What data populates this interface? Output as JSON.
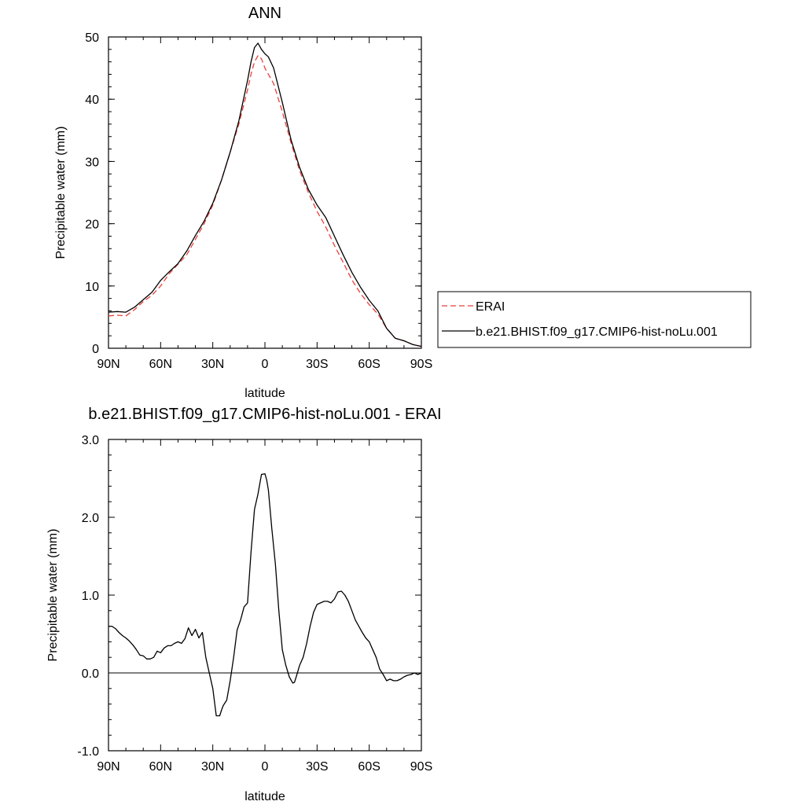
{
  "chart_data": [
    {
      "type": "line",
      "title": "ANN",
      "xlabel": "latitude",
      "ylabel": "Precipitable water (mm)",
      "x_ticks": [
        "90N",
        "60N",
        "30N",
        "0",
        "30S",
        "60S",
        "90S"
      ],
      "y_ticks": [
        "0",
        "10",
        "20",
        "30",
        "40",
        "50"
      ],
      "xlim": [
        90,
        -90
      ],
      "ylim": [
        0,
        50
      ],
      "legend_position": "right",
      "series": [
        {
          "name": "ERAI",
          "color": "#e8403a",
          "dash": "dashed",
          "x": [
            90,
            85,
            80,
            75,
            70,
            65,
            60,
            55,
            50,
            45,
            40,
            35,
            30,
            25,
            20,
            15,
            10,
            8,
            6,
            4,
            2,
            0,
            -2,
            -5,
            -10,
            -15,
            -20,
            -25,
            -30,
            -35,
            -40,
            -45,
            -50,
            -55,
            -60,
            -65,
            -70,
            -75,
            -80,
            -85,
            -90
          ],
          "y": [
            5.2,
            5.3,
            5.2,
            6.2,
            7.5,
            8.5,
            10.0,
            12.0,
            13.5,
            15.0,
            17.5,
            20.0,
            23.0,
            27.0,
            31.5,
            36.0,
            41.5,
            44.0,
            46.0,
            47.0,
            46.5,
            45.0,
            44.0,
            42.5,
            38.0,
            33.0,
            28.5,
            25.0,
            22.0,
            19.5,
            16.5,
            13.8,
            11.0,
            8.8,
            7.0,
            5.5,
            3.2,
            1.6,
            1.2,
            0.6,
            0.3
          ]
        },
        {
          "name": "b.e21.BHIST.f09_g17.CMIP6-hist-noLu.001",
          "color": "#000000",
          "dash": "solid",
          "x": [
            90,
            85,
            80,
            75,
            70,
            65,
            60,
            55,
            50,
            45,
            40,
            35,
            30,
            25,
            20,
            15,
            10,
            8,
            6,
            4,
            2,
            0,
            -2,
            -5,
            -10,
            -15,
            -20,
            -25,
            -30,
            -35,
            -40,
            -45,
            -50,
            -55,
            -60,
            -65,
            -70,
            -75,
            -80,
            -85,
            -90
          ],
          "y": [
            5.8,
            5.9,
            5.8,
            6.6,
            7.8,
            9.0,
            10.9,
            12.3,
            13.6,
            15.6,
            18.1,
            20.4,
            23.3,
            27.0,
            31.5,
            36.5,
            43.0,
            46.0,
            48.3,
            49.0,
            48.0,
            47.3,
            46.8,
            45.0,
            39.5,
            33.5,
            29.0,
            25.5,
            23.0,
            21.0,
            18.0,
            15.0,
            12.2,
            9.8,
            7.7,
            6.0,
            3.2,
            1.6,
            1.2,
            0.6,
            0.3
          ]
        }
      ]
    },
    {
      "type": "line",
      "title": "b.e21.BHIST.f09_g17.CMIP6-hist-noLu.001 - ERAI",
      "xlabel": "latitude",
      "ylabel": "Precipitable water (mm)",
      "x_ticks": [
        "90N",
        "60N",
        "30N",
        "0",
        "30S",
        "60S",
        "90S"
      ],
      "y_ticks": [
        "-1.0",
        "0.0",
        "1.0",
        "2.0",
        "3.0"
      ],
      "xlim": [
        90,
        -90
      ],
      "ylim": [
        -1.0,
        3.0
      ],
      "reference_line": 0.0,
      "series": [
        {
          "color": "#000000",
          "dash": "solid",
          "x": [
            90,
            88,
            86,
            84,
            82,
            80,
            78,
            76,
            74,
            72,
            70,
            68,
            66,
            64,
            62,
            60,
            58,
            56,
            54,
            52,
            50,
            48,
            46,
            44,
            42,
            40,
            38,
            36,
            34,
            32,
            30,
            28,
            26,
            25,
            24,
            22,
            20,
            18,
            16,
            14,
            12,
            10,
            8,
            6,
            4,
            2,
            0,
            -1,
            -2,
            -3,
            -4,
            -6,
            -8,
            -10,
            -12,
            -14,
            -16,
            -17,
            -18,
            -20,
            -22,
            -24,
            -26,
            -28,
            -30,
            -32,
            -34,
            -36,
            -38,
            -40,
            -42,
            -44,
            -46,
            -48,
            -50,
            -52,
            -54,
            -56,
            -58,
            -60,
            -62,
            -64,
            -66,
            -68,
            -70,
            -72,
            -74,
            -76,
            -78,
            -80,
            -82,
            -84,
            -86,
            -88,
            -90
          ],
          "y": [
            0.6,
            0.6,
            0.57,
            0.52,
            0.48,
            0.45,
            0.41,
            0.36,
            0.3,
            0.23,
            0.22,
            0.18,
            0.18,
            0.2,
            0.28,
            0.26,
            0.32,
            0.35,
            0.35,
            0.38,
            0.4,
            0.38,
            0.44,
            0.58,
            0.48,
            0.56,
            0.45,
            0.52,
            0.2,
            0.0,
            -0.2,
            -0.55,
            -0.55,
            -0.48,
            -0.42,
            -0.35,
            -0.1,
            0.2,
            0.55,
            0.68,
            0.85,
            0.9,
            1.55,
            2.1,
            2.3,
            2.55,
            2.56,
            2.48,
            2.35,
            2.1,
            1.85,
            1.4,
            0.8,
            0.3,
            0.1,
            -0.05,
            -0.13,
            -0.12,
            -0.05,
            0.1,
            0.2,
            0.38,
            0.6,
            0.78,
            0.88,
            0.9,
            0.92,
            0.92,
            0.9,
            0.95,
            1.04,
            1.05,
            1.0,
            0.92,
            0.8,
            0.68,
            0.6,
            0.52,
            0.45,
            0.4,
            0.3,
            0.2,
            0.05,
            -0.02,
            -0.1,
            -0.08,
            -0.1,
            -0.1,
            -0.08,
            -0.05,
            -0.03,
            -0.02,
            0.0,
            -0.02,
            0.0
          ]
        }
      ]
    }
  ]
}
